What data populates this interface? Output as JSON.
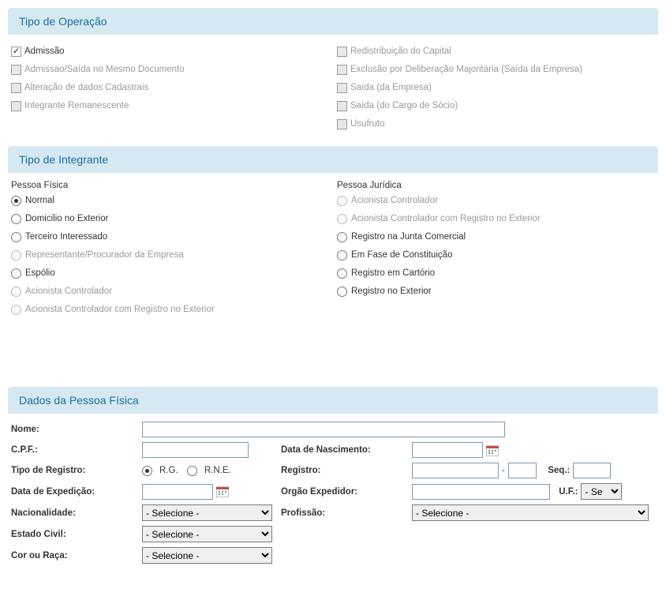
{
  "sections": {
    "op": "Tipo de Operação",
    "integ": "Tipo de Integrante",
    "pf": "Dados da Pessoa Física"
  },
  "op_left": [
    {
      "label": "Admissão",
      "checked": true,
      "disabled": false
    },
    {
      "label": "Admissao/Saída no Mesmo Documento",
      "checked": false,
      "disabled": true
    },
    {
      "label": "Alteração de dados Cadastrais",
      "checked": false,
      "disabled": true
    },
    {
      "label": "Integrante Remanescente",
      "checked": false,
      "disabled": true
    }
  ],
  "op_right": [
    {
      "label": "Redistribuição do Capital",
      "checked": false,
      "disabled": true
    },
    {
      "label": "Exclusão por Deliberação Majoritária (Saída da Empresa)",
      "checked": false,
      "disabled": true
    },
    {
      "label": "Saída (da Empresa)",
      "checked": false,
      "disabled": true
    },
    {
      "label": "Saída (do Cargo de Sócio)",
      "checked": false,
      "disabled": true
    },
    {
      "label": "Usufruto",
      "checked": false,
      "disabled": true
    }
  ],
  "integ": {
    "pf_title": "Pessoa Física",
    "pj_title": "Pessoa Jurídica",
    "pf": [
      {
        "label": "Normal",
        "selected": true,
        "disabled": false
      },
      {
        "label": "Domicilio no Exterior",
        "selected": false,
        "disabled": false
      },
      {
        "label": "Terceiro Interessado",
        "selected": false,
        "disabled": false
      },
      {
        "label": "Representante/Procurador da Empresa",
        "selected": false,
        "disabled": true
      },
      {
        "label": "Espólio",
        "selected": false,
        "disabled": false
      },
      {
        "label": "Acionista Controlador",
        "selected": false,
        "disabled": true
      },
      {
        "label": "Acionista Controlador com Registro no Exterior",
        "selected": false,
        "disabled": true
      }
    ],
    "pj": [
      {
        "label": "Acionista Controlador",
        "selected": false,
        "disabled": true
      },
      {
        "label": "Acionista Controlador com Registro no Exterior",
        "selected": false,
        "disabled": true
      },
      {
        "label": "Registro na Junta Comercial",
        "selected": false,
        "disabled": false
      },
      {
        "label": "Em Fase de Constituição",
        "selected": false,
        "disabled": false
      },
      {
        "label": "Registro em Cartório",
        "selected": false,
        "disabled": false
      },
      {
        "label": "Registro no Exterior",
        "selected": false,
        "disabled": false
      }
    ]
  },
  "pf_form": {
    "nome": "Nome:",
    "cpf": "C.P.F.:",
    "data_nasc": "Data de Nascimento:",
    "tipo_reg": "Tipo de Registro:",
    "rg": "R.G.",
    "rne": "R.N.E.",
    "registro": "Registro:",
    "dash": "-",
    "seq": "Seq.:",
    "data_exp": "Data de Expedição:",
    "orgao": "Orgão Expedidor:",
    "uf": "U.F.:",
    "uf_sel": "- Se",
    "nacion": "Nacionalidade:",
    "prof": "Profissão:",
    "selecione": "- Selecione -",
    "estado_civil": "Estado Civil:",
    "cor": "Cor ou Raça:"
  }
}
